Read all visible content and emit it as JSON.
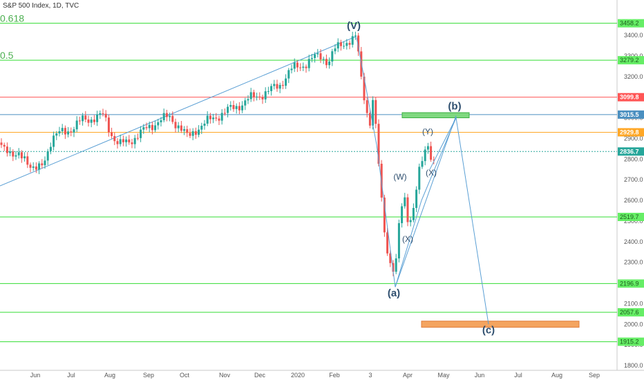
{
  "header": {
    "symbol_text": "S&P 500 Index, 1D, TVC"
  },
  "fib_labels": [
    {
      "text": "0.618",
      "price": 3458
    },
    {
      "text": "0.5",
      "price": 3280
    }
  ],
  "colors": {
    "green_line": "#33dd33",
    "red_line": "#ff5555",
    "blue_line": "#4a8fc0",
    "orange_line": "#ffa726",
    "teal_dotted": "#26a69a",
    "candle_up": "#26a69a",
    "candle_down": "#ef5350",
    "wave_line": "#5a9fd4",
    "target_box": "#f4a460",
    "top_box": "#7fd87f"
  },
  "chart_data": {
    "type": "candlestick",
    "y_range": [
      1800,
      3500
    ],
    "y_ticks": [
      1800,
      1900,
      2000,
      2100,
      2200,
      2300,
      2400,
      2500,
      2600,
      2700,
      2800,
      2900,
      3000,
      3100,
      3200,
      3300,
      3400
    ],
    "x_labels": [
      "Jun",
      "Jul",
      "Aug",
      "Sep",
      "Oct",
      "Nov",
      "Dec",
      "2020",
      "Feb",
      "3",
      "Apr",
      "May",
      "Jun",
      "Jul",
      "Aug",
      "Sep"
    ],
    "horizontal_levels": [
      {
        "price": 3458,
        "label": "3458.2",
        "color": "green"
      },
      {
        "price": 3279,
        "label": "3279.2",
        "color": "green"
      },
      {
        "price": 3099.8,
        "label": "3099.8",
        "color": "red"
      },
      {
        "price": 3015.5,
        "label": "3015.5",
        "color": "blue"
      },
      {
        "price": 2929.8,
        "label": "2929.8",
        "color": "orange"
      },
      {
        "price": 2836.7,
        "label": "2836.7",
        "color": "teal",
        "dotted": true
      },
      {
        "price": 2519.7,
        "label": "2519.7",
        "color": "green"
      },
      {
        "price": 2196.9,
        "label": "2196.9",
        "color": "green"
      },
      {
        "price": 2057.6,
        "label": "2057.6",
        "color": "green"
      },
      {
        "price": 1915.2,
        "label": "1915.2",
        "color": "green"
      }
    ],
    "wave_labels": [
      {
        "text": "(V)",
        "price": 3430
      },
      {
        "text": "(a)",
        "price": 2135
      },
      {
        "text": "(W)",
        "price": 2700
      },
      {
        "text": "(X)",
        "price": 2400
      },
      {
        "text": "(Y)",
        "price": 2920
      },
      {
        "text": "(X)",
        "price": 2720
      },
      {
        "text": "(b)",
        "price": 3040
      },
      {
        "text": "(c)",
        "price": 1955
      }
    ],
    "wave_path_prices": [
      2730,
      3390,
      2180,
      3000,
      2000
    ],
    "target_zone": {
      "from": 1985,
      "to": 2015
    },
    "top_zone": {
      "from": 3000,
      "to": 3025
    },
    "grid": false
  }
}
